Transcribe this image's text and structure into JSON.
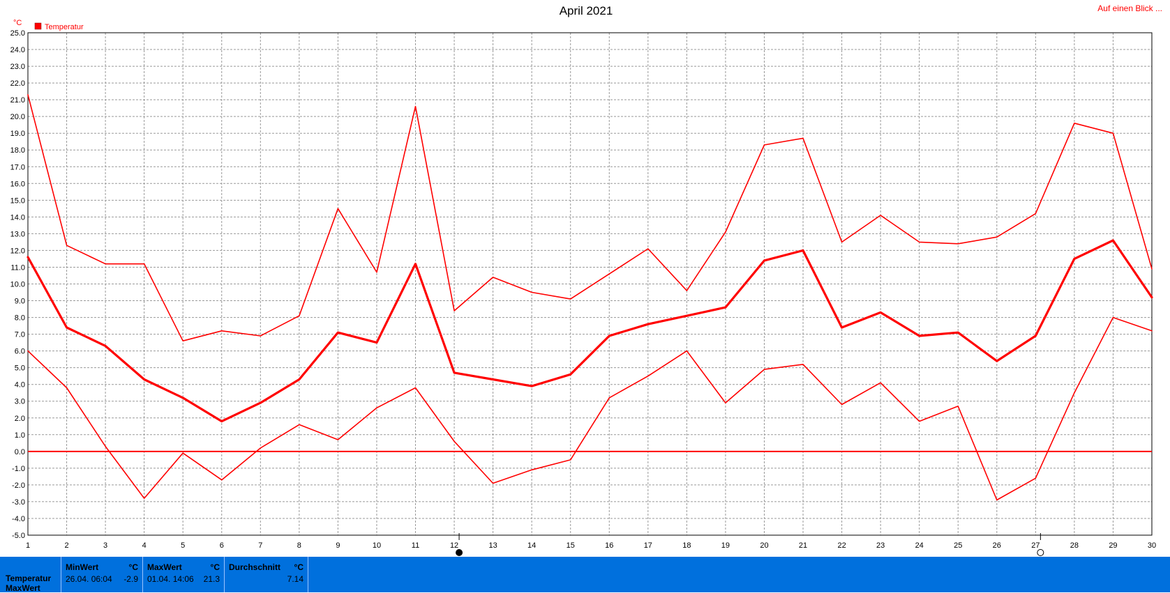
{
  "chart_data": {
    "type": "line",
    "title": "April 2021",
    "y_unit": "°C",
    "legend": [
      "Temperatur"
    ],
    "legend_position": "top-left",
    "grid": true,
    "ylim": [
      -5.0,
      25.0
    ],
    "y_ticks": [
      "25.0",
      "24.0",
      "23.0",
      "22.0",
      "21.0",
      "20.0",
      "19.0",
      "18.0",
      "17.0",
      "16.0",
      "15.0",
      "14.0",
      "13.0",
      "12.0",
      "11.0",
      "10.0",
      "9.0",
      "8.0",
      "7.0",
      "6.0",
      "5.0",
      "4.0",
      "3.0",
      "2.0",
      "1.0",
      "0.0",
      "-1.0",
      "-2.0",
      "-3.0",
      "-4.0",
      "-5.0"
    ],
    "x": [
      "1",
      "2",
      "3",
      "4",
      "5",
      "6",
      "7",
      "8",
      "9",
      "10",
      "11",
      "12",
      "13",
      "14",
      "15",
      "16",
      "17",
      "18",
      "19",
      "20",
      "21",
      "22",
      "23",
      "24",
      "25",
      "26",
      "27",
      "28",
      "29",
      "30"
    ],
    "series": [
      {
        "role": "max",
        "width": 1.6,
        "values": [
          21.3,
          12.3,
          11.2,
          11.2,
          6.6,
          7.2,
          6.9,
          8.1,
          14.5,
          10.7,
          20.6,
          8.4,
          10.4,
          9.5,
          9.1,
          10.6,
          12.1,
          9.6,
          13.1,
          18.3,
          18.7,
          12.5,
          14.1,
          12.5,
          12.4,
          12.8,
          14.2,
          19.6,
          19.0,
          10.9
        ]
      },
      {
        "role": "avg",
        "width": 3.2,
        "values": [
          11.6,
          7.4,
          6.3,
          4.3,
          3.2,
          1.8,
          2.9,
          4.3,
          7.1,
          6.5,
          11.2,
          4.7,
          4.3,
          3.9,
          4.6,
          6.9,
          7.6,
          8.1,
          8.6,
          11.4,
          12.0,
          7.4,
          8.3,
          6.9,
          7.1,
          5.4,
          6.9,
          11.5,
          12.6,
          9.2
        ]
      },
      {
        "role": "min",
        "width": 1.6,
        "values": [
          6.0,
          3.8,
          0.3,
          -2.8,
          -0.1,
          -1.7,
          0.2,
          1.6,
          0.7,
          2.6,
          3.8,
          0.6,
          -1.9,
          -1.1,
          -0.5,
          3.2,
          4.5,
          6.0,
          2.9,
          4.9,
          5.2,
          2.8,
          4.1,
          1.8,
          2.7,
          -2.9,
          -1.6,
          3.5,
          8.0,
          7.2
        ]
      }
    ],
    "zero_line": 0.0,
    "moon_markers": [
      {
        "day": 12,
        "phase": "new"
      },
      {
        "day": 27,
        "phase": "full"
      }
    ],
    "colors": {
      "series": "#ff0000",
      "grid": "#999999",
      "stats_bg": "#0070dd"
    }
  },
  "top_link": "Auf einen Blick ...",
  "stats": {
    "row_labels": [
      "Temperatur",
      "MaxWert"
    ],
    "min_header": "MinWert",
    "min_unit": "°C",
    "min_time": "26.04.  06:04",
    "min_value": "-2.9",
    "max_header": "MaxWert",
    "max_unit": "°C",
    "max_time": "01.04.  14:06",
    "max_value": "21.3",
    "avg_header": "Durchschnitt",
    "avg_unit": "°C",
    "avg_value": "7.14"
  }
}
